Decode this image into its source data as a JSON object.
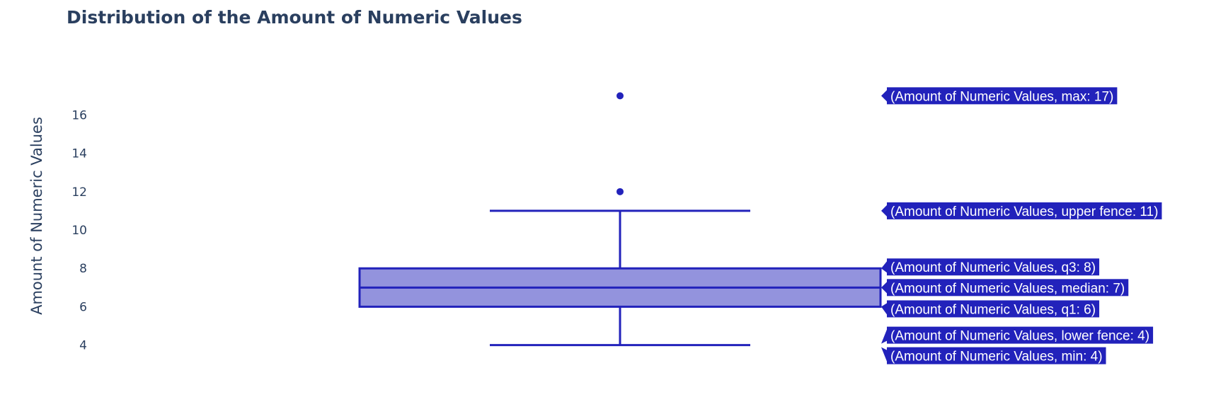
{
  "chart_data": {
    "type": "box",
    "title": "Distribution of the Amount of Numeric Values",
    "ylabel": "Amount of Numeric Values",
    "xlabel": "",
    "ylim": [
      3.1,
      18.6
    ],
    "yticks": [
      4,
      6,
      8,
      10,
      12,
      14,
      16
    ],
    "grid": false,
    "colors": {
      "line": "#2222bb",
      "fill": "#9393dd",
      "label_bg": "#2222bb",
      "text": "#2a3f5f"
    },
    "box": {
      "min": 4,
      "lower_fence": 4,
      "q1": 6,
      "median": 7,
      "q3": 8,
      "upper_fence": 11,
      "max": 17,
      "outliers": [
        12,
        17
      ]
    },
    "hover_labels": [
      {
        "stat": "max",
        "text": "(Amount of Numeric Values, max: 17)"
      },
      {
        "stat": "upper_fence",
        "text": "(Amount of Numeric Values, upper fence: 11)"
      },
      {
        "stat": "q3",
        "text": "(Amount of Numeric Values, q3: 8)"
      },
      {
        "stat": "median",
        "text": "(Amount of Numeric Values, median: 7)"
      },
      {
        "stat": "q1",
        "text": "(Amount of Numeric Values, q1: 6)"
      },
      {
        "stat": "lower_fence",
        "text": "(Amount of Numeric Values, lower fence: 4)"
      },
      {
        "stat": "min",
        "text": "(Amount of Numeric Values, min: 4)"
      }
    ]
  }
}
